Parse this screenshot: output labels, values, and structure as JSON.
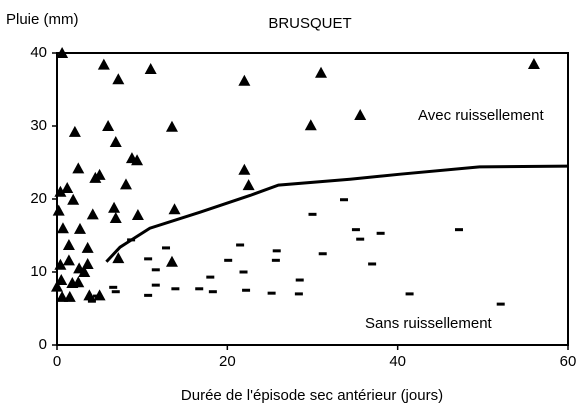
{
  "chart_data": {
    "type": "scatter",
    "title": "BRUSQUET",
    "y_label": "Pluie (mm)",
    "x_label": "Durée de l'épisode sec antérieur (jours)",
    "xlim": [
      0,
      60
    ],
    "xticks": [
      0,
      20,
      40,
      60
    ],
    "ylim": [
      0,
      40
    ],
    "yticks": [
      0,
      10,
      20,
      30,
      40
    ],
    "annotations": [
      "Avec ruissellement",
      "Sans ruissellement"
    ],
    "series": [
      {
        "marker": "triangle",
        "color": "#000000",
        "x": [
          0.6,
          5.5,
          7.2,
          11,
          22,
          31,
          56,
          2.1,
          6,
          13.5,
          29.8,
          35.6,
          6.9,
          9.4,
          8.8,
          2.5,
          4.5,
          5,
          8.1,
          1.2,
          0.4,
          22,
          22.5,
          0.2,
          1.9,
          4.2,
          6.7,
          6.9,
          9.5,
          13.8,
          0.7,
          2.7,
          1.4,
          3.6,
          0.4,
          1.4,
          2.6,
          3.2,
          3.6,
          7.2,
          13.5,
          0.5,
          1.8,
          2.5,
          0.6,
          1.5,
          3.8,
          5,
          0
        ],
        "values": [
          40,
          38.4,
          36.4,
          37.8,
          36.2,
          37.3,
          38.5,
          29.2,
          30,
          29.9,
          30.1,
          31.5,
          27.8,
          25.3,
          25.6,
          24.2,
          22.9,
          23.3,
          22,
          21.5,
          21,
          24,
          21.9,
          18.4,
          19.9,
          17.9,
          18.8,
          17.4,
          17.8,
          18.6,
          16,
          15.9,
          13.7,
          13.3,
          11,
          11.6,
          10.5,
          10,
          11.1,
          11.9,
          11.4,
          8.9,
          8.5,
          8.6,
          6.6,
          6.6,
          6.8,
          6.8,
          8
        ]
      },
      {
        "marker": "dash",
        "color": "#000000",
        "x": [
          4.7,
          4.1,
          6.6,
          6.9,
          10.7,
          10.7,
          12.8,
          11.6,
          13.9,
          16.7,
          18.3,
          18,
          20.1,
          21.5,
          21.9,
          22.2,
          25.2,
          25.7,
          25.8,
          28.4,
          28.5,
          30,
          31.2,
          33.7,
          35.1,
          35.6,
          37,
          38,
          41.4,
          47.2,
          52.1,
          8.7,
          11.6
        ],
        "values": [
          6.7,
          6,
          7.9,
          7.3,
          6.8,
          11.8,
          13.3,
          10.3,
          7.7,
          7.7,
          7.3,
          9.3,
          11.6,
          13.7,
          10,
          7.5,
          7.1,
          11.6,
          12.9,
          7,
          8.9,
          17.9,
          12.5,
          19.9,
          15.8,
          14.5,
          11.1,
          15.3,
          7,
          15.8,
          5.6,
          14.4,
          8.2
        ]
      },
      {
        "marker": "line",
        "color": "#000000",
        "x": [
          5.8,
          7.4,
          10.9,
          16.8,
          22.7,
          26,
          34.4,
          40.3,
          49.6,
          60
        ],
        "values": [
          11.4,
          13.4,
          16,
          18.2,
          20.5,
          21.9,
          22.7,
          23.4,
          24.4,
          24.5
        ]
      }
    ]
  }
}
